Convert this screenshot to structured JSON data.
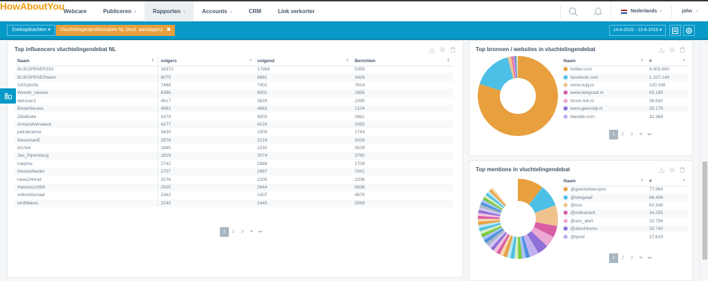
{
  "app": {
    "logo": "HowAboutYou"
  },
  "nav": {
    "items": [
      {
        "label": "Webcare",
        "caret": false,
        "active": false
      },
      {
        "label": "Publiceren",
        "caret": true,
        "active": false
      },
      {
        "label": "Rapporten",
        "caret": true,
        "active": true
      },
      {
        "label": "Accounts",
        "caret": true,
        "active": false
      },
      {
        "label": "CRM",
        "caret": false,
        "active": false
      },
      {
        "label": "Link verkorter",
        "caret": false,
        "active": false
      }
    ],
    "language": "Nederlands",
    "user": "john",
    "caret": "▾"
  },
  "filterbar": {
    "searches_button": "Zoekopdrachten ▾",
    "active_tag": "Vluchtelingenproblematiek NL (excl. aanslagen)",
    "tag_remove": "✖",
    "date_range": "14-6-2015 - 13-6-2016 ▾"
  },
  "influencers": {
    "title": "Top influencers vluchtelingendebat NL",
    "columns": [
      "Naam",
      "volgers",
      "volgend",
      "Berichten"
    ],
    "sort_icons": [
      "⇕",
      "▾",
      "⇕",
      "⇕"
    ],
    "rows": [
      [
        "BLIKOPENER333",
        "16372",
        "17988",
        "5359"
      ],
      [
        "BLIKOPENERteam",
        "8075",
        "8881",
        "3429"
      ],
      [
        "1001ptsNL",
        "7468",
        "7401",
        "7814"
      ],
      [
        "Wereld_nieuws",
        "6396",
        "6001",
        "1856"
      ],
      [
        "dekoran1",
        "4617",
        "3829",
        "2395"
      ],
      [
        "BesteNieuws",
        "4582",
        "4863",
        "2104"
      ],
      [
        "ZilteBotte",
        "4379",
        "4503",
        "2861"
      ],
      [
        "ArmandVervaeck",
        "4177",
        "4124",
        "2092"
      ],
      [
        "petrakramer",
        "3430",
        "1909",
        "1743"
      ],
      [
        "NewsmanE",
        "2976",
        "3219",
        "3029"
      ],
      [
        "drsYell",
        "2895",
        "1532",
        "3529"
      ],
      [
        "Jan_Pijnenburg",
        "2819",
        "3074",
        "3790"
      ],
      [
        "roepme",
        "2742",
        "2988",
        "1709"
      ],
      [
        "Nieuwsfeeder",
        "2707",
        "1897",
        "7041"
      ],
      [
        "news24hnld",
        "2576",
        "2205",
        "2206"
      ],
      [
        "Hannesz1956",
        "2505",
        "2644",
        "9638"
      ],
      [
        "volkstribunaal",
        "2362",
        "1407",
        "4678"
      ],
      [
        "lenifillekes",
        "2243",
        "2445",
        "5569"
      ]
    ],
    "pager": [
      "1",
      "2",
      "3",
      "➜",
      "⏭"
    ]
  },
  "sources": {
    "title": "Top bronnen / websites in vluchtelingendebat",
    "columns": [
      "Naam",
      "#"
    ],
    "rows": [
      {
        "name": "twitter.com",
        "value": "4.305.600",
        "color": "#e8a03e"
      },
      {
        "name": "facebook.com",
        "value": "1.107.144",
        "color": "#4cc0e6"
      },
      {
        "name": "www.nujij.nl",
        "value": "120.166",
        "color": "#f0c38e"
      },
      {
        "name": "www.telegraaf.nl",
        "value": "63.189",
        "color": "#d95fa5"
      },
      {
        "name": "forum.fok.nl",
        "value": "36.542",
        "color": "#eba8d2"
      },
      {
        "name": "www.geenstijl.nl",
        "value": "35.176",
        "color": "#8f6fd8"
      },
      {
        "name": "blendle.com",
        "value": "31.369",
        "color": "#c3b0ee"
      }
    ],
    "pager": [
      "1",
      "2",
      "3",
      "➜",
      "⏭"
    ]
  },
  "mentions": {
    "title": "Top mentions in vluchtelingendebat",
    "columns": [
      "Naam",
      "#"
    ],
    "rows": [
      {
        "name": "@geertwilderspvv",
        "value": "77.964",
        "color": "#e8a03e"
      },
      {
        "name": "@telegraaf",
        "value": "66.468",
        "color": "#4cc0e6"
      },
      {
        "name": "@nos",
        "value": "62.348",
        "color": "#f0c38e"
      },
      {
        "name": "@volkskrant",
        "value": "34.255",
        "color": "#d95fa5"
      },
      {
        "name": "@azc_alert",
        "value": "32.794",
        "color": "#eba8d2"
      },
      {
        "name": "@allochtoons",
        "value": "32.740",
        "color": "#8f6fd8"
      },
      {
        "name": "@tponl",
        "value": "27.619",
        "color": "#c3b0ee"
      }
    ],
    "pager": [
      "1",
      "2",
      "3",
      "➜",
      "⏭"
    ]
  },
  "colors": {
    "accent": "#0799c8",
    "tag": "#e7a03c",
    "logo": "#f39c12"
  }
}
